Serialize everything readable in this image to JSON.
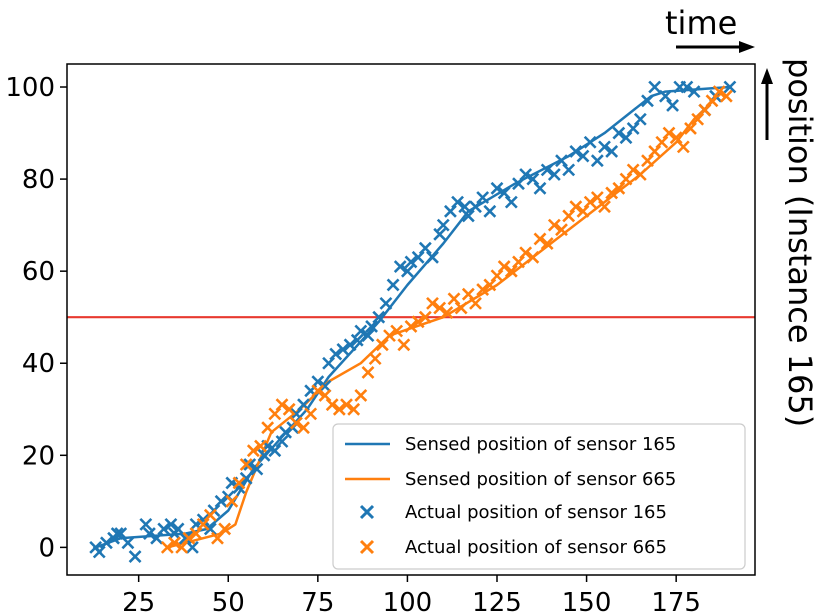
{
  "chart_data": {
    "type": "scatter",
    "xlim": [
      5,
      197
    ],
    "ylim": [
      -6,
      105
    ],
    "x_ticks": [
      25,
      50,
      75,
      100,
      125,
      150,
      175
    ],
    "y_ticks": [
      0,
      20,
      40,
      60,
      80,
      100
    ],
    "x_tick_labels": [
      "25",
      "50",
      "75",
      "100",
      "125",
      "150",
      "175"
    ],
    "y_tick_labels": [
      "0",
      "20",
      "40",
      "60",
      "80",
      "100"
    ],
    "threshold": 50,
    "time_label": "time",
    "position_label": "position (Instance 165)",
    "legend_position": "lower-right",
    "colors": {
      "sensor_165": "#1f77b4",
      "sensor_665": "#ff7f0e",
      "threshold": "#e8392f"
    },
    "series": [
      {
        "name": "Sensed position of sensor 165",
        "kind": "line",
        "x": [
          13,
          20,
          38,
          44,
          50,
          57,
          65,
          72,
          78,
          92,
          100,
          110,
          117,
          130,
          145,
          155,
          168,
          172,
          190
        ],
        "y": [
          0,
          2,
          3,
          4,
          8,
          17,
          24,
          30,
          37,
          49,
          57,
          66,
          73,
          79,
          85,
          90,
          98,
          99,
          100
        ]
      },
      {
        "name": "Sensed position of sensor 665",
        "kind": "line",
        "x": [
          33,
          38,
          48,
          52,
          55,
          62,
          70,
          78,
          87,
          95,
          110,
          125,
          140,
          155,
          165,
          175,
          180,
          188
        ],
        "y": [
          0,
          1,
          3,
          5,
          12,
          25,
          30,
          36,
          40,
          46,
          50,
          57,
          66,
          75,
          81,
          88,
          93,
          99
        ]
      },
      {
        "name": "Actual position of sensor 165",
        "kind": "scatter",
        "x": [
          13,
          14,
          16,
          18,
          19,
          20,
          22,
          24,
          27,
          28,
          30,
          32,
          34,
          35,
          36,
          38,
          40,
          41,
          43,
          45,
          46,
          48,
          50,
          51,
          53,
          55,
          56,
          58,
          60,
          61,
          63,
          65,
          66,
          68,
          69,
          71,
          73,
          75,
          77,
          78,
          80,
          82,
          84,
          86,
          87,
          89,
          90,
          92,
          94,
          96,
          98,
          100,
          101,
          103,
          105,
          107,
          109,
          110,
          112,
          114,
          116,
          117,
          119,
          121,
          123,
          125,
          127,
          129,
          131,
          133,
          135,
          137,
          139,
          141,
          143,
          145,
          147,
          149,
          151,
          153,
          155,
          157,
          159,
          161,
          163,
          165,
          167,
          169,
          172,
          174,
          176,
          178,
          180,
          183,
          186,
          190
        ],
        "y": [
          0,
          -1,
          1,
          2,
          3,
          3,
          1,
          -2,
          5,
          3,
          2,
          4,
          5,
          3,
          4,
          2,
          0,
          5,
          6,
          4,
          8,
          10,
          11,
          14,
          13,
          15,
          18,
          17,
          20,
          22,
          21,
          23,
          25,
          26,
          29,
          31,
          34,
          36,
          35,
          40,
          42,
          43,
          44,
          45,
          47,
          46,
          48,
          50,
          53,
          57,
          61,
          60,
          62,
          63,
          65,
          63,
          68,
          70,
          73,
          75,
          74,
          72,
          74,
          76,
          73,
          78,
          77,
          75,
          79,
          81,
          80,
          78,
          82,
          81,
          84,
          82,
          86,
          85,
          88,
          84,
          87,
          86,
          90,
          89,
          91,
          93,
          97,
          100,
          98,
          96,
          100,
          100,
          99,
          95,
          98,
          100
        ]
      },
      {
        "name": "Actual position of sensor 665",
        "kind": "scatter",
        "x": [
          33,
          35,
          37,
          39,
          41,
          43,
          45,
          47,
          49,
          51,
          53,
          55,
          57,
          59,
          61,
          63,
          65,
          67,
          69,
          71,
          73,
          75,
          77,
          79,
          81,
          83,
          85,
          87,
          89,
          91,
          93,
          95,
          97,
          99,
          101,
          103,
          105,
          107,
          109,
          111,
          113,
          115,
          117,
          119,
          121,
          123,
          125,
          127,
          129,
          131,
          133,
          135,
          137,
          139,
          141,
          143,
          145,
          147,
          149,
          151,
          153,
          155,
          157,
          159,
          161,
          163,
          165,
          167,
          169,
          171,
          173,
          175,
          177,
          179,
          181,
          183,
          185,
          187,
          189
        ],
        "y": [
          0,
          1,
          0,
          2,
          3,
          5,
          7,
          2,
          4,
          10,
          14,
          18,
          21,
          22,
          26,
          29,
          31,
          30,
          27,
          26,
          29,
          34,
          33,
          31,
          30,
          31,
          30,
          33,
          38,
          41,
          44,
          46,
          47,
          44,
          48,
          49,
          50,
          53,
          52,
          51,
          54,
          52,
          55,
          53,
          56,
          57,
          59,
          61,
          60,
          62,
          64,
          63,
          67,
          66,
          70,
          69,
          72,
          74,
          73,
          75,
          76,
          74,
          77,
          78,
          80,
          82,
          81,
          84,
          86,
          88,
          90,
          89,
          87,
          91,
          93,
          95,
          97,
          99,
          98
        ]
      }
    ]
  }
}
